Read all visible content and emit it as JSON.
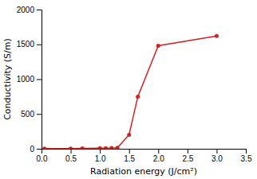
{
  "chart_data": {
    "type": "line",
    "x": [
      0.05,
      0.5,
      0.7,
      1.0,
      1.1,
      1.2,
      1.3,
      1.5,
      1.65,
      2.0,
      3.0
    ],
    "values": [
      2,
      3,
      5,
      8,
      10,
      12,
      15,
      200,
      750,
      1480,
      1620
    ],
    "color": "#d42020",
    "marker": "circle",
    "xlabel": "Radiation energy (J/cm²)",
    "ylabel": "Conductivity (S/m)",
    "xlim": [
      0,
      3.5
    ],
    "ylim": [
      0,
      2000
    ],
    "xticks": [
      {
        "value": 0,
        "label": "0.0"
      },
      0.5,
      {
        "value": 1,
        "label": "1.0"
      },
      1.5,
      {
        "value": 2,
        "label": "2.0"
      },
      2.5,
      {
        "value": 3,
        "label": "3.0"
      },
      3.5
    ],
    "yticks": [
      0,
      500,
      1000,
      1500,
      2000
    ]
  }
}
